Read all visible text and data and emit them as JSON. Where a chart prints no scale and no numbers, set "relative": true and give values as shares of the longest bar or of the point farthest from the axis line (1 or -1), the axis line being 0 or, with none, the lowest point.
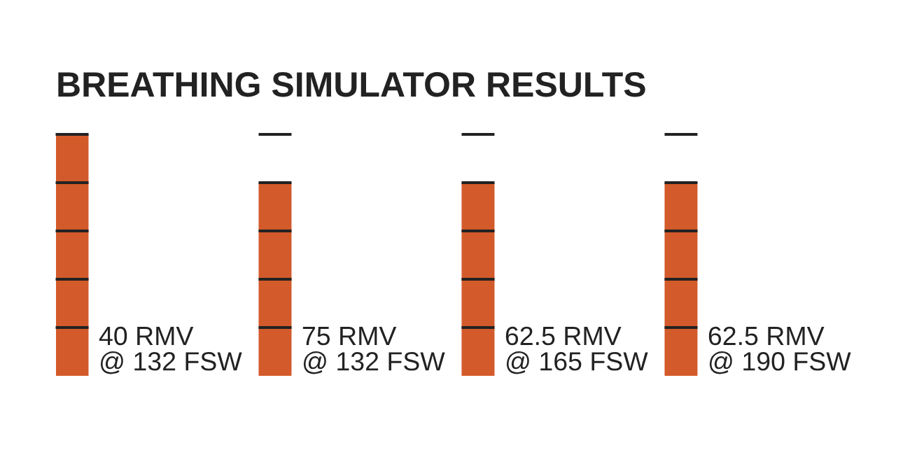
{
  "chart_data": {
    "type": "bar",
    "title": "BREATHING SIMULATOR RESULTS",
    "categories": [
      "40 RMV\n@ 132 FSW",
      "75 RMV\n@ 132 FSW",
      "62.5 RMV\n@ 165 FSW",
      "62.5 RMV\n@ 190 FSW"
    ],
    "values": [
      1,
      0.8,
      0.8,
      0.8
    ],
    "color": "#d35a2a",
    "relative": true
  }
}
